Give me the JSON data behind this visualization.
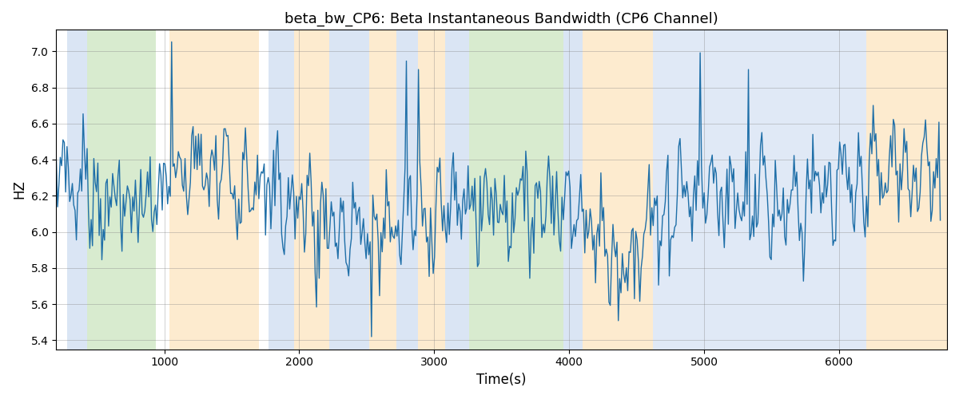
{
  "title": "beta_bw_CP6: Beta Instantaneous Bandwidth (CP6 Channel)",
  "xlabel": "Time(s)",
  "ylabel": "HZ",
  "xlim": [
    200,
    6800
  ],
  "ylim": [
    5.35,
    7.12
  ],
  "yticks": [
    5.4,
    5.6,
    5.8,
    6.0,
    6.2,
    6.4,
    6.6,
    6.8,
    7.0
  ],
  "xticks": [
    1000,
    2000,
    3000,
    4000,
    5000,
    6000
  ],
  "line_color": "#1f6fa8",
  "line_width": 1.0,
  "bg_color": "#ffffff",
  "bands": [
    {
      "xmin": 280,
      "xmax": 430,
      "color": "#aec6e8",
      "alpha": 0.45
    },
    {
      "xmin": 430,
      "xmax": 940,
      "color": "#b2d9a0",
      "alpha": 0.5
    },
    {
      "xmin": 1040,
      "xmax": 1700,
      "color": "#fdd9a0",
      "alpha": 0.5
    },
    {
      "xmin": 1770,
      "xmax": 1960,
      "color": "#aec6e8",
      "alpha": 0.45
    },
    {
      "xmin": 1960,
      "xmax": 2220,
      "color": "#fdd9a0",
      "alpha": 0.5
    },
    {
      "xmin": 2220,
      "xmax": 2520,
      "color": "#aec6e8",
      "alpha": 0.45
    },
    {
      "xmin": 2520,
      "xmax": 2720,
      "color": "#fdd9a0",
      "alpha": 0.5
    },
    {
      "xmin": 2720,
      "xmax": 2880,
      "color": "#aec6e8",
      "alpha": 0.45
    },
    {
      "xmin": 2880,
      "xmax": 3080,
      "color": "#fdd9a0",
      "alpha": 0.5
    },
    {
      "xmin": 3080,
      "xmax": 3260,
      "color": "#aec6e8",
      "alpha": 0.45
    },
    {
      "xmin": 3260,
      "xmax": 3960,
      "color": "#b2d9a0",
      "alpha": 0.5
    },
    {
      "xmin": 3960,
      "xmax": 4100,
      "color": "#aec6e8",
      "alpha": 0.45
    },
    {
      "xmin": 4100,
      "xmax": 4620,
      "color": "#fdd9a0",
      "alpha": 0.5
    },
    {
      "xmin": 4620,
      "xmax": 6100,
      "color": "#aec6e8",
      "alpha": 0.38
    },
    {
      "xmin": 6100,
      "xmax": 6200,
      "color": "#aec6e8",
      "alpha": 0.38
    },
    {
      "xmin": 6200,
      "xmax": 6800,
      "color": "#fdd9a0",
      "alpha": 0.5
    }
  ],
  "seed": 7,
  "n_points": 660,
  "t_start": 200,
  "t_end": 6750
}
